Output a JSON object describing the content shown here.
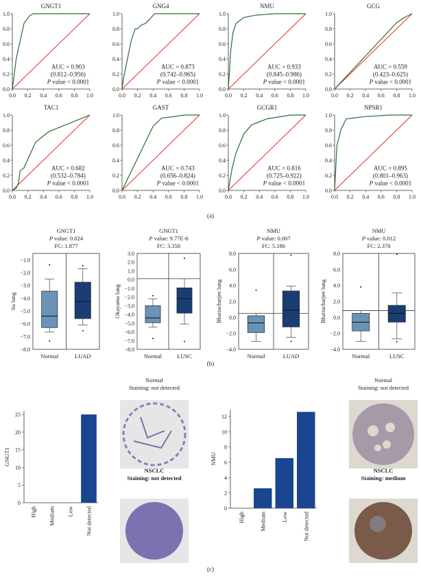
{
  "colors": {
    "roc": "#2e6b2e",
    "diag": "#e8262a",
    "box_normal": "#6b93b8",
    "box_tumor": "#1a3e72",
    "bar": "#1a4590"
  },
  "panel_labels": {
    "a": "(a)",
    "b": "(b)",
    "c": "(c)"
  },
  "chart_data": [
    {
      "type": "line",
      "panel": "a",
      "title": "GNGT1",
      "auc": "AUC = 0.903",
      "ci": "(0.812–0.956)",
      "p_prefix": "P",
      "p_text": " value < 0.0001",
      "xlim": [
        0,
        1
      ],
      "ylim": [
        0,
        1
      ],
      "ticks": [
        "0.0",
        "0.2",
        "0.4",
        "0.6",
        "0.8",
        "1.0"
      ],
      "x": [
        0,
        0.05,
        0.15,
        0.22,
        0.27,
        1
      ],
      "y": [
        0,
        0.4,
        0.87,
        0.97,
        1,
        1
      ]
    },
    {
      "type": "line",
      "panel": "a",
      "title": "GNG4",
      "auc": "AUC = 0.873",
      "ci": "(0.742–0.965)",
      "p_prefix": "P",
      "p_text": " value < 0.0001",
      "xlim": [
        0,
        1
      ],
      "ylim": [
        0,
        1
      ],
      "ticks": [
        "0.0",
        "0.2",
        "0.4",
        "0.6",
        "0.8",
        "1.0"
      ],
      "x": [
        0,
        0.02,
        0.05,
        0.08,
        0.12,
        0.17,
        0.2,
        0.25,
        0.3,
        0.35,
        0.42,
        1
      ],
      "y": [
        0,
        0.15,
        0.3,
        0.45,
        0.65,
        0.8,
        0.8,
        0.85,
        0.87,
        0.92,
        1,
        1
      ]
    },
    {
      "type": "line",
      "panel": "a",
      "title": "NMU",
      "auc": "AUC = 0.933",
      "ci": "(0.845–0.986)",
      "p_prefix": "P",
      "p_text": " value < 0.0001",
      "xlim": [
        0,
        1
      ],
      "ylim": [
        0,
        1
      ],
      "ticks": [
        "0.0",
        "0.2",
        "0.4",
        "0.6",
        "0.8",
        "1.0"
      ],
      "x": [
        0,
        0.03,
        0.06,
        0.1,
        0.2,
        0.35,
        0.6,
        1
      ],
      "y": [
        0,
        0.5,
        0.75,
        0.87,
        0.95,
        0.98,
        1,
        1
      ]
    },
    {
      "type": "line",
      "panel": "a",
      "title": "GCG",
      "auc": "AUC = 0.559",
      "ci": "(0.423–0.625)",
      "p_prefix": "P",
      "p_text": " value < 0.0001",
      "xlim": [
        0,
        1
      ],
      "ylim": [
        0,
        1
      ],
      "ticks": [
        "0.0",
        "0.2",
        "0.4",
        "0.6",
        "0.8",
        "1.0"
      ],
      "x": [
        0,
        0.2,
        0.5,
        0.8,
        0.9,
        1
      ],
      "y": [
        0,
        0.22,
        0.55,
        0.88,
        0.95,
        1
      ]
    },
    {
      "type": "line",
      "panel": "a",
      "title": "TAC1",
      "auc": "AUC = 0.682",
      "ci": "(0.532–0.784)",
      "p_prefix": "P",
      "p_text": " value < 0.0001",
      "xlim": [
        0,
        1
      ],
      "ylim": [
        0,
        1
      ],
      "ticks": [
        "0.0",
        "0.2",
        "0.4",
        "0.6",
        "0.8",
        "1.0"
      ],
      "x": [
        0,
        0.05,
        0.08,
        0.1,
        0.15,
        0.3,
        0.47,
        1
      ],
      "y": [
        0,
        0.03,
        0.1,
        0.26,
        0.3,
        0.64,
        0.78,
        1
      ]
    },
    {
      "type": "line",
      "panel": "a",
      "title": "GAST",
      "auc": "AUC = 0.743",
      "ci": "(0.656–0.824)",
      "p_prefix": "P",
      "p_text": " value < 0.0001",
      "xlim": [
        0,
        1
      ],
      "ylim": [
        0,
        1
      ],
      "ticks": [
        "0.0",
        "0.2",
        "0.4",
        "0.6",
        "0.8",
        "1.0"
      ],
      "x": [
        0,
        0.4,
        0.51,
        0.6,
        0.8,
        1
      ],
      "y": [
        0,
        0.85,
        0.96,
        0.97,
        1,
        1
      ]
    },
    {
      "type": "line",
      "panel": "a",
      "title": "GCGR1",
      "auc": "AUC = 0.816",
      "ci": "(0.725–0.922)",
      "p_prefix": "P",
      "p_text": " value < 0.0001",
      "xlim": [
        0,
        1
      ],
      "ylim": [
        0,
        1
      ],
      "ticks": [
        "0.0",
        "0.2",
        "0.4",
        "0.6",
        "0.8",
        "1.0"
      ],
      "x": [
        0,
        0.05,
        0.1,
        0.2,
        0.3,
        0.5,
        0.8,
        1
      ],
      "y": [
        0,
        0.3,
        0.5,
        0.75,
        0.87,
        0.95,
        1,
        1
      ]
    },
    {
      "type": "line",
      "panel": "a",
      "title": "NPSR1",
      "auc": "AUC = 0.895",
      "ci": "(0.801–0.963)",
      "p_prefix": "P",
      "p_text": " value < 0.0001",
      "xlim": [
        0,
        1
      ],
      "ylim": [
        0,
        1
      ],
      "ticks": [
        "0.0",
        "0.2",
        "0.4",
        "0.6",
        "0.8",
        "1.0"
      ],
      "x": [
        0,
        0.03,
        0.08,
        0.15,
        0.4,
        0.7,
        1
      ],
      "y": [
        0,
        0.6,
        0.8,
        0.95,
        0.98,
        1,
        1
      ]
    },
    {
      "type": "box",
      "panel": "b",
      "title": "GNGT1",
      "p_prefix": "P",
      "p_text": " value: 0.024",
      "fc": "FC: 1.877",
      "ylabel": "Su lung",
      "ylim": [
        -8,
        -0.5
      ],
      "yticks": [
        -1,
        -2,
        -3,
        -4,
        -5,
        -6,
        -7,
        -8
      ],
      "ytick_labels": [
        "−1.0",
        "−2.0",
        "−3.0",
        "−4.0",
        "−5.0",
        "−6.0",
        "−7.0",
        "−8.0"
      ],
      "ref": null,
      "groups": [
        {
          "label": "Normal",
          "min": -6.65,
          "q1": -6.3,
          "median": -5.4,
          "q3": -3.45,
          "max": -2.5,
          "outliers": [
            -1.4,
            -7.35
          ]
        },
        {
          "label": "LUAD",
          "min": -6.1,
          "q1": -5.6,
          "median": -4.25,
          "q3": -2.75,
          "max": -1.7,
          "outliers": [
            -1.45,
            -6.55
          ]
        }
      ]
    },
    {
      "type": "box",
      "panel": "b",
      "title": "GNGT1",
      "p_prefix": "P",
      "p_text": " value: 9.77E-6",
      "fc": "FC: 3.358",
      "ylabel": "Okayama lung",
      "ylim": [
        -8,
        3
      ],
      "yticks": [
        3,
        2,
        1,
        0,
        -1,
        -2,
        -3,
        -4,
        -5,
        -6,
        -7,
        -8
      ],
      "ytick_labels": [
        "3.0",
        "2.0",
        "1.0",
        "0.0",
        "−1.0",
        "−2.0",
        "−3.0",
        "−4.0",
        "−5.0",
        "−6.0",
        "−7.0",
        "−8.0"
      ],
      "ref": 0.1,
      "groups": [
        {
          "label": "Normal",
          "min": -5.45,
          "q1": -4.95,
          "median": -4.4,
          "q3": -3.0,
          "max": -2.2,
          "outliers": [
            -1.85,
            -6.75
          ]
        },
        {
          "label": "LUSC",
          "min": -5.1,
          "q1": -3.85,
          "median": -2.2,
          "q3": -0.95,
          "max": 0.1,
          "outliers": [
            2.45,
            -7.1
          ]
        }
      ]
    },
    {
      "type": "box",
      "panel": "b",
      "title": "NMU",
      "p_prefix": "P",
      "p_text": " value: 0.007",
      "fc": "FC: 5.186",
      "ylabel": "Bhattacharjee lung",
      "ylim": [
        -4,
        8
      ],
      "yticks": [
        8,
        6,
        4,
        2,
        0,
        -2,
        -4
      ],
      "ytick_labels": [
        "8.0",
        "6.0",
        "4.0",
        "2.0",
        "0.0",
        "−2.0",
        "−4.0"
      ],
      "ref": 0.5,
      "groups": [
        {
          "label": "Normal",
          "min": -3.0,
          "q1": -1.9,
          "median": -0.7,
          "q3": 0.2,
          "max": 0.5,
          "outliers": [
            3.4
          ]
        },
        {
          "label": "LUAD",
          "min": -2.5,
          "q1": -1.2,
          "median": 0.9,
          "q3": 3.3,
          "max": 3.9,
          "outliers": [
            7.8,
            -3.0
          ]
        }
      ]
    },
    {
      "type": "box",
      "panel": "b",
      "title": "NMU",
      "p_prefix": "P",
      "p_text": " value: 0.012",
      "fc": "FC: 2.378",
      "ylabel": "Bhattacharjee lung",
      "ylim": [
        -4,
        8
      ],
      "yticks": [
        8,
        6,
        4,
        2,
        0,
        -2,
        -4
      ],
      "ytick_labels": [
        "8.0",
        "6.0",
        "4.0",
        "2.0",
        "0.0",
        "−2.0",
        "−4.0"
      ],
      "ref": 0.85,
      "groups": [
        {
          "label": "Normal",
          "min": -3.0,
          "q1": -1.7,
          "median": -0.6,
          "q3": 0.5,
          "max": 0.85,
          "outliers": [
            3.8
          ]
        },
        {
          "label": "LUSC",
          "min": -2.7,
          "q1": -0.6,
          "median": 0.5,
          "q3": 1.5,
          "max": 3.05,
          "outliers": [
            7.9,
            -3.05
          ]
        }
      ]
    },
    {
      "type": "bar",
      "panel": "c",
      "ylabel": "GNGT1",
      "categories": [
        "High",
        "Medium",
        "Low",
        "Not detected"
      ],
      "values": [
        0,
        0,
        0,
        25
      ],
      "ylim": [
        0,
        26
      ],
      "yticks": [
        0,
        5,
        10,
        15,
        20,
        25
      ],
      "ytick_labels": [
        "0",
        "5",
        "10",
        "15",
        "20",
        "25"
      ]
    },
    {
      "type": "bar",
      "panel": "c",
      "ylabel": "NMU",
      "categories": [
        "High",
        "Medium",
        "Low",
        "Not detected"
      ],
      "values": [
        0,
        2.6,
        6.55,
        12.6
      ],
      "ylim": [
        0,
        12.9
      ],
      "yticks": [
        0,
        2,
        4,
        6,
        8,
        10,
        12
      ],
      "ytick_labels": [
        "0",
        "2",
        "4",
        "6",
        "8",
        "10",
        "12"
      ]
    }
  ],
  "ihc_images": [
    {
      "title": "Normal",
      "caption": "Staining: not detected",
      "stain": "none",
      "bold": false
    },
    {
      "title": "NSCLC",
      "caption": "Staining: not detected",
      "stain": "none",
      "bold": true
    },
    {
      "title": "Normal",
      "caption": "Staining: not detected",
      "stain": "none",
      "bold": false
    },
    {
      "title": "NSCLC",
      "caption": "Staining: medium",
      "stain": "medium",
      "bold": true
    }
  ]
}
